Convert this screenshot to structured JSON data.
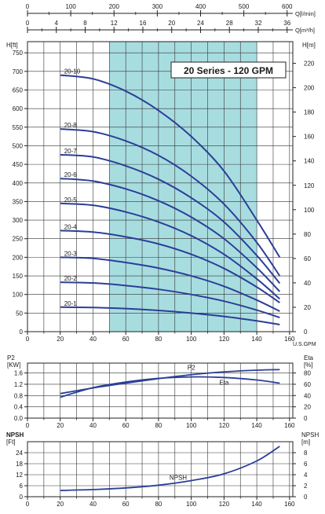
{
  "chart_data": [
    {
      "id": "head",
      "type": "line",
      "title": "20 Series - 120 GPM",
      "left_axis": {
        "label": "H[ft]",
        "ticks": [
          0,
          50,
          100,
          150,
          200,
          250,
          300,
          350,
          400,
          450,
          500,
          550,
          600,
          650,
          700,
          750
        ]
      },
      "right_axis": {
        "label": "H[m]",
        "ticks": [
          0,
          20,
          40,
          60,
          80,
          100,
          120,
          140,
          160,
          180,
          200,
          220
        ]
      },
      "bottom_axis": {
        "label": "U.S.GPM",
        "ticks": [
          0,
          20,
          40,
          60,
          80,
          100,
          120,
          140,
          160
        ]
      },
      "top_axes": [
        {
          "label": "Q[l/min]",
          "ticks": [
            0,
            100,
            200,
            300,
            400,
            500,
            600
          ]
        },
        {
          "label": "Q[m³/h]",
          "ticks": [
            0,
            4,
            8,
            12,
            16,
            20,
            24,
            28,
            32,
            36
          ]
        }
      ],
      "xlim": [
        0,
        162
      ],
      "ylim": [
        0,
        780
      ],
      "recommended_range": [
        50,
        140
      ],
      "band_color": "#a8dde0",
      "curve_color": "#2b3f98",
      "series": [
        {
          "name": "20-10",
          "x": [
            20,
            40,
            60,
            80,
            100,
            120,
            140,
            154
          ],
          "y": [
            690,
            680,
            647,
            595,
            525,
            432,
            300,
            200
          ]
        },
        {
          "name": "20-8",
          "x": [
            20,
            40,
            60,
            80,
            100,
            120,
            140,
            154
          ],
          "y": [
            545,
            538,
            513,
            474,
            418,
            343,
            240,
            150
          ]
        },
        {
          "name": "20-7",
          "x": [
            20,
            40,
            60,
            80,
            100,
            120,
            140,
            154
          ],
          "y": [
            476,
            470,
            446,
            410,
            360,
            295,
            205,
            130
          ]
        },
        {
          "name": "20-6",
          "x": [
            20,
            40,
            60,
            80,
            100,
            120,
            140,
            154
          ],
          "y": [
            412,
            405,
            384,
            352,
            308,
            250,
            172,
            108
          ]
        },
        {
          "name": "20-5",
          "x": [
            20,
            40,
            60,
            80,
            100,
            120,
            140,
            154
          ],
          "y": [
            345,
            340,
            322,
            295,
            258,
            208,
            142,
            88
          ]
        },
        {
          "name": "20-4",
          "x": [
            20,
            40,
            60,
            80,
            100,
            120,
            140,
            154
          ],
          "y": [
            272,
            268,
            255,
            236,
            208,
            170,
            120,
            78
          ]
        },
        {
          "name": "20-3",
          "x": [
            20,
            40,
            60,
            80,
            100,
            120,
            140,
            154
          ],
          "y": [
            200,
            197,
            186,
            171,
            150,
            122,
            85,
            55
          ]
        },
        {
          "name": "20-2",
          "x": [
            20,
            40,
            60,
            80,
            100,
            120,
            140,
            154
          ],
          "y": [
            133,
            131,
            124,
            114,
            100,
            82,
            58,
            38
          ]
        },
        {
          "name": "20-1",
          "x": [
            20,
            40,
            60,
            80,
            100,
            120,
            140,
            154
          ],
          "y": [
            66,
            65,
            62,
            57,
            50,
            41,
            29,
            19
          ]
        }
      ]
    },
    {
      "id": "power",
      "type": "line",
      "left_axis": {
        "label": "P2",
        "unit": "[KW]",
        "ticks": [
          0.0,
          0.4,
          0.8,
          1.2,
          1.6
        ]
      },
      "right_axis": {
        "label": "Eta",
        "unit": "[%]",
        "ticks": [
          0,
          20,
          40,
          60,
          80
        ]
      },
      "bottom_axis": {
        "ticks": [
          0,
          20,
          40,
          60,
          80,
          100,
          120,
          140,
          160
        ]
      },
      "xlim": [
        0,
        162
      ],
      "ylim": [
        0,
        1.95
      ],
      "series": [
        {
          "name": "P2",
          "x": [
            20,
            40,
            60,
            80,
            100,
            120,
            140,
            154
          ],
          "y": [
            0.87,
            1.07,
            1.24,
            1.4,
            1.54,
            1.64,
            1.7,
            1.72
          ]
        },
        {
          "name": "Eta",
          "x": [
            20,
            40,
            60,
            80,
            100,
            120,
            140,
            154
          ],
          "y": [
            0.74,
            1.08,
            1.28,
            1.41,
            1.46,
            1.44,
            1.35,
            1.24
          ]
        }
      ]
    },
    {
      "id": "npsh",
      "type": "line",
      "left_axis": {
        "label": "NPSH",
        "unit": "[Ft]",
        "ticks": [
          0,
          6,
          12,
          18,
          24
        ]
      },
      "right_axis": {
        "label": "NPSH",
        "unit": "[m]",
        "ticks": [
          0,
          2,
          4,
          6,
          8
        ]
      },
      "bottom_axis": {
        "ticks": [
          0,
          20,
          40,
          60,
          80,
          100,
          120,
          140,
          160
        ]
      },
      "xlim": [
        0,
        162
      ],
      "ylim": [
        0,
        30
      ],
      "series": [
        {
          "name": "NPSH",
          "x": [
            20,
            40,
            60,
            80,
            100,
            120,
            140,
            154
          ],
          "y": [
            3.4,
            3.9,
            4.8,
            6.3,
            8.8,
            12.5,
            19.5,
            27.5
          ]
        }
      ]
    }
  ]
}
